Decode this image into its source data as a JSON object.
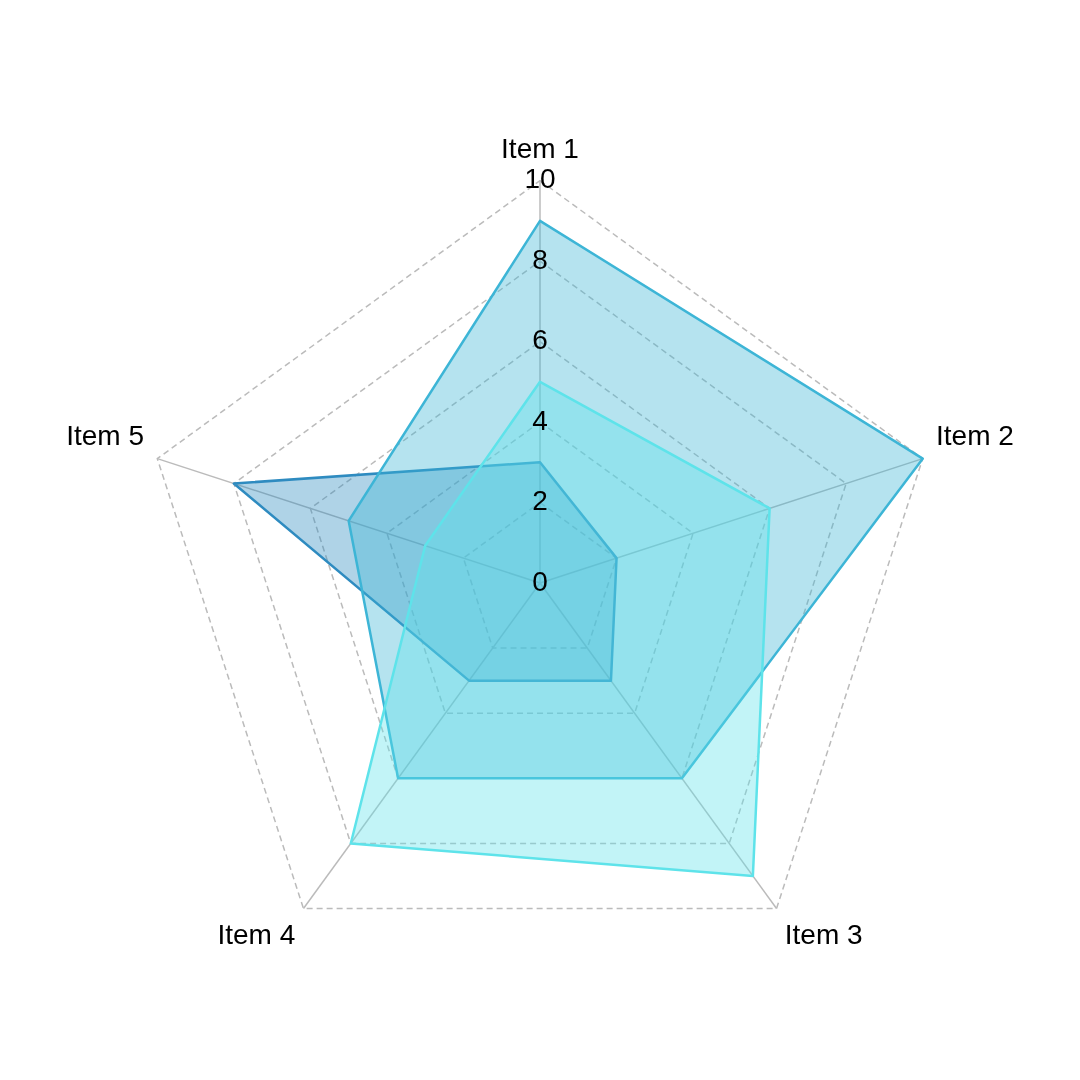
{
  "chart_data": {
    "type": "radar",
    "categories": [
      "Item 1",
      "Item 2",
      "Item 3",
      "Item 4",
      "Item 5"
    ],
    "series": [
      {
        "color": "#5ee3ea",
        "values": [
          5,
          6,
          9,
          8,
          3
        ]
      },
      {
        "color": "#3db5d6",
        "values": [
          9,
          10,
          6,
          6,
          5
        ]
      },
      {
        "color": "#2e8bc0",
        "values": [
          3,
          2,
          3,
          3,
          8
        ]
      }
    ],
    "ylim": [
      0,
      10
    ],
    "yticks": [
      0,
      2,
      4,
      6,
      8,
      10
    ],
    "grid": true,
    "legend": false,
    "marker": "none"
  }
}
